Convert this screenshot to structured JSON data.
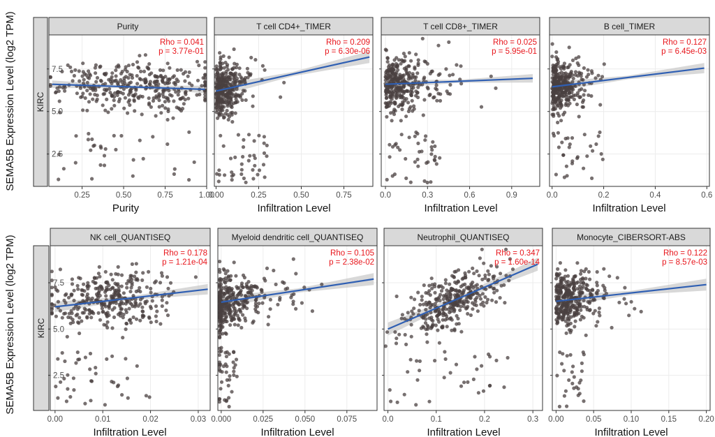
{
  "figure": {
    "row_strip_label": "KIRC",
    "ylabel": "SEMA5B Expression Level (log2 TPM)",
    "colors": {
      "points": "#4a4040",
      "line": "#2f5fb3",
      "band": "#c8c8c8",
      "stat": "#e8151b",
      "strip": "#d9d9d9"
    }
  },
  "chart_data": [
    {
      "type": "scatter",
      "title": "Purity",
      "xlabel": "Purity",
      "ylabel": "SEMA5B Expression Level (log2 TPM)",
      "xlim": [
        0.05,
        1.0
      ],
      "ylim": [
        0.6,
        9.5
      ],
      "xticks": [
        0.25,
        0.5,
        0.75,
        1.0
      ],
      "xtick_labels": [
        "0.25",
        "0.50",
        "0.75",
        "1.00"
      ],
      "yticks": [
        2.5,
        5.0,
        7.5
      ],
      "ytick_labels": [
        "2.5",
        "5.0",
        "7.5"
      ],
      "rho": "Rho = 0.041",
      "p": "p = 3.77e-01",
      "fit": {
        "x": [
          0.07,
          0.99
        ],
        "y": [
          6.6,
          6.3
        ]
      },
      "band": 0.22,
      "dist": {
        "x_center": 0.55,
        "x_spread": 0.25,
        "x_skew": 0,
        "slope": -0.33,
        "intercept": 6.62,
        "noise": 0.7,
        "low_frac": 0.1,
        "low_x": [
          0.1,
          0.95
        ],
        "n": 380
      }
    },
    {
      "type": "scatter",
      "title": "T cell CD4+_TIMER",
      "xlabel": "Infiltration Level",
      "xlim": [
        -0.01,
        0.92
      ],
      "ylim": [
        0.6,
        9.5
      ],
      "xticks": [
        0.0,
        0.25,
        0.5,
        0.75
      ],
      "xtick_labels": [
        "0.00",
        "0.25",
        "0.50",
        "0.75"
      ],
      "yticks": [
        2.5,
        5.0,
        7.5
      ],
      "ytick_labels": [
        "",
        "",
        ""
      ],
      "rho": "Rho = 0.209",
      "p": "p = 6.30e-06",
      "fit": {
        "x": [
          0.0,
          0.9
        ],
        "y": [
          6.2,
          8.2
        ]
      },
      "band": 0.35,
      "dist": {
        "x_center": 0.08,
        "x_spread": 0.09,
        "x_skew": 1,
        "slope": 2.2,
        "intercept": 6.2,
        "noise": 0.75,
        "low_frac": 0.1,
        "low_x": [
          0.0,
          0.3
        ],
        "n": 380
      }
    },
    {
      "type": "scatter",
      "title": "T cell CD8+_TIMER",
      "xlabel": "Infiltration Level",
      "xlim": [
        -0.03,
        1.1
      ],
      "ylim": [
        0.6,
        9.5
      ],
      "xticks": [
        0.0,
        0.3,
        0.6,
        0.9
      ],
      "xtick_labels": [
        "0.0",
        "0.3",
        "0.6",
        "0.9"
      ],
      "yticks": [
        2.5,
        5.0,
        7.5
      ],
      "ytick_labels": [
        "",
        "",
        ""
      ],
      "rho": "Rho = 0.025",
      "p": "p = 5.95e-01",
      "fit": {
        "x": [
          0.0,
          1.05
        ],
        "y": [
          6.6,
          6.95
        ]
      },
      "band": 0.25,
      "dist": {
        "x_center": 0.2,
        "x_spread": 0.2,
        "x_skew": 1,
        "slope": 0.33,
        "intercept": 6.6,
        "noise": 0.75,
        "low_frac": 0.1,
        "low_x": [
          0.0,
          0.4
        ],
        "n": 380
      }
    },
    {
      "type": "scatter",
      "title": "B cell_TIMER",
      "xlabel": "Infiltration Level",
      "xlim": [
        -0.01,
        0.61
      ],
      "ylim": [
        0.6,
        9.5
      ],
      "xticks": [
        0.0,
        0.2,
        0.4,
        0.6
      ],
      "xtick_labels": [
        "0.0",
        "0.2",
        "0.4",
        "0.6"
      ],
      "yticks": [
        2.5,
        5.0,
        7.5
      ],
      "ytick_labels": [
        "",
        "",
        ""
      ],
      "rho": "Rho = 0.127",
      "p": "p = 6.45e-03",
      "fit": {
        "x": [
          0.0,
          0.59
        ],
        "y": [
          6.45,
          7.55
        ]
      },
      "band": 0.3,
      "dist": {
        "x_center": 0.06,
        "x_spread": 0.07,
        "x_skew": 1,
        "slope": 1.85,
        "intercept": 6.45,
        "noise": 0.75,
        "low_frac": 0.1,
        "low_x": [
          0.0,
          0.2
        ],
        "n": 380
      }
    },
    {
      "type": "scatter",
      "title": "NK cell_QUANTISEQ",
      "xlabel": "Infiltration Level",
      "ylabel": "SEMA5B Expression Level (log2 TPM)",
      "xlim": [
        -0.001,
        0.0325
      ],
      "ylim": [
        0.6,
        9.5
      ],
      "xticks": [
        0.0,
        0.01,
        0.02,
        0.03
      ],
      "xtick_labels": [
        "0.00",
        "0.01",
        "0.02",
        "0.03"
      ],
      "yticks": [
        2.5,
        5.0,
        7.5
      ],
      "ytick_labels": [
        "2.5",
        "5.0",
        "7.5"
      ],
      "rho": "Rho = 0.178",
      "p": "p = 1.21e-04",
      "fit": {
        "x": [
          0.0,
          0.032
        ],
        "y": [
          6.2,
          7.15
        ]
      },
      "band": 0.28,
      "dist": {
        "x_center": 0.011,
        "x_spread": 0.006,
        "x_skew": 0,
        "slope": 30,
        "intercept": 6.2,
        "noise": 0.72,
        "low_frac": 0.1,
        "low_x": [
          0.0,
          0.02
        ],
        "n": 380
      }
    },
    {
      "type": "scatter",
      "title": "Myeloid dendritic cell_QUANTISEQ",
      "xlabel": "Infiltration Level",
      "xlim": [
        -0.002,
        0.093
      ],
      "ylim": [
        0.6,
        9.5
      ],
      "xticks": [
        0.0,
        0.025,
        0.05,
        0.075
      ],
      "xtick_labels": [
        "0.000",
        "0.025",
        "0.050",
        "0.075"
      ],
      "yticks": [
        2.5,
        5.0,
        7.5
      ],
      "ytick_labels": [
        "",
        "",
        ""
      ],
      "rho": "Rho = 0.105",
      "p": "p = 2.38e-02",
      "fit": {
        "x": [
          0.0,
          0.091
        ],
        "y": [
          6.45,
          7.7
        ]
      },
      "band": 0.32,
      "dist": {
        "x_center": 0.015,
        "x_spread": 0.018,
        "x_skew": 1,
        "slope": 13.7,
        "intercept": 6.45,
        "noise": 0.75,
        "low_frac": 0.1,
        "low_x": [
          0.0,
          0.01
        ],
        "zero_frac": 0.3,
        "n": 380
      }
    },
    {
      "type": "scatter",
      "title": "Neutrophil_QUANTISEQ",
      "xlabel": "Infiltration Level",
      "xlim": [
        -0.008,
        0.32
      ],
      "ylim": [
        0.6,
        9.5
      ],
      "xticks": [
        0.0,
        0.1,
        0.2,
        0.3
      ],
      "xtick_labels": [
        "0.0",
        "0.1",
        "0.2",
        "0.3"
      ],
      "yticks": [
        2.5,
        5.0,
        7.5
      ],
      "ytick_labels": [
        "",
        "",
        ""
      ],
      "rho": "Rho = 0.347",
      "p": "p = 1.60e-14",
      "fit": {
        "x": [
          0.0,
          0.31
        ],
        "y": [
          5.0,
          8.5
        ]
      },
      "band": 0.35,
      "dist": {
        "x_center": 0.14,
        "x_spread": 0.05,
        "x_skew": 0,
        "slope": 11.3,
        "intercept": 5.0,
        "noise": 0.7,
        "low_frac": 0.09,
        "low_x": [
          0.0,
          0.25
        ],
        "n": 380
      }
    },
    {
      "type": "scatter",
      "title": "Monocyte_CIBERSORT-ABS",
      "xlabel": "Infiltration Level",
      "xlim": [
        -0.005,
        0.205
      ],
      "ylim": [
        0.6,
        9.5
      ],
      "xticks": [
        0.0,
        0.05,
        0.1,
        0.15,
        0.2
      ],
      "xtick_labels": [
        "0.00",
        "0.05",
        "0.10",
        "0.15",
        "0.20"
      ],
      "yticks": [
        2.5,
        5.0,
        7.5
      ],
      "ytick_labels": [
        "",
        "",
        ""
      ],
      "rho": "Rho = 0.122",
      "p": "p = 8.57e-03",
      "fit": {
        "x": [
          0.0,
          0.2
        ],
        "y": [
          6.5,
          7.4
        ]
      },
      "band": 0.32,
      "dist": {
        "x_center": 0.02,
        "x_spread": 0.03,
        "x_skew": 1,
        "slope": 4.5,
        "intercept": 6.5,
        "noise": 0.75,
        "low_frac": 0.1,
        "low_x": [
          0.0,
          0.04
        ],
        "n": 380
      }
    }
  ]
}
